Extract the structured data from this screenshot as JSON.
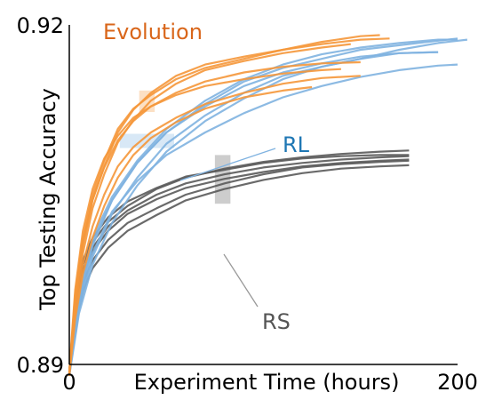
{
  "chart_data": {
    "type": "line",
    "title": "",
    "xlabel": "Experiment Time (hours)",
    "ylabel": "Top Testing Accuracy",
    "xlim": [
      0,
      200
    ],
    "ylim": [
      0.89,
      0.92
    ],
    "x_ticks": [
      "0",
      "200"
    ],
    "y_ticks": [
      "0.89",
      "0.92"
    ],
    "grid": false,
    "colors": {
      "Evolution": "#f5973a",
      "RL": "#7fb2e0",
      "RS": "#5a5a5a",
      "Evolution_label": "#d9661a",
      "RL_label": "#1f77b4",
      "RS_label": "#555555"
    },
    "annotations": [
      {
        "text": "Evolution",
        "group": "Evolution"
      },
      {
        "text": "RL",
        "group": "RL"
      },
      {
        "text": "RS",
        "group": "RS"
      }
    ],
    "highlight_bands": [
      {
        "group": "Evolution",
        "x": [
          36,
          44
        ],
        "y": [
          0.9123,
          0.9142
        ]
      },
      {
        "group": "RL",
        "x": [
          26,
          54
        ],
        "y": [
          0.9097,
          0.9098
        ]
      },
      {
        "group": "RS",
        "x": [
          75,
          83
        ],
        "y": [
          0.9042,
          0.9085
        ]
      }
    ],
    "series": [
      {
        "group": "Evolution",
        "values": [
          [
            0,
            0.889
          ],
          [
            3,
            0.8955
          ],
          [
            7,
            0.9005
          ],
          [
            12,
            0.9045
          ],
          [
            18,
            0.9075
          ],
          [
            25,
            0.9105
          ],
          [
            33,
            0.9125
          ],
          [
            42,
            0.914
          ],
          [
            55,
            0.9155
          ],
          [
            70,
            0.9165
          ],
          [
            90,
            0.9172
          ],
          [
            110,
            0.9178
          ],
          [
            130,
            0.9183
          ],
          [
            150,
            0.9187
          ],
          [
            165,
            0.9188
          ]
        ]
      },
      {
        "group": "Evolution",
        "values": [
          [
            0,
            0.8893
          ],
          [
            3,
            0.8962
          ],
          [
            7,
            0.9012
          ],
          [
            12,
            0.905
          ],
          [
            18,
            0.908
          ],
          [
            25,
            0.9108
          ],
          [
            33,
            0.9126
          ],
          [
            42,
            0.9138
          ],
          [
            55,
            0.9152
          ],
          [
            70,
            0.9162
          ],
          [
            90,
            0.917
          ],
          [
            110,
            0.9178
          ],
          [
            130,
            0.9185
          ],
          [
            150,
            0.919
          ],
          [
            160,
            0.9191
          ]
        ]
      },
      {
        "group": "Evolution",
        "values": [
          [
            0,
            0.889
          ],
          [
            3,
            0.895
          ],
          [
            7,
            0.8998
          ],
          [
            12,
            0.9038
          ],
          [
            18,
            0.9068
          ],
          [
            25,
            0.9096
          ],
          [
            33,
            0.9116
          ],
          [
            42,
            0.9133
          ],
          [
            55,
            0.9148
          ],
          [
            70,
            0.916
          ],
          [
            90,
            0.9168
          ],
          [
            110,
            0.9175
          ],
          [
            130,
            0.918
          ],
          [
            145,
            0.9183
          ]
        ]
      },
      {
        "group": "Evolution",
        "values": [
          [
            0,
            0.8892
          ],
          [
            3,
            0.8958
          ],
          [
            7,
            0.9008
          ],
          [
            12,
            0.9046
          ],
          [
            18,
            0.9074
          ],
          [
            25,
            0.9098
          ],
          [
            33,
            0.9115
          ],
          [
            42,
            0.9128
          ],
          [
            55,
            0.914
          ],
          [
            70,
            0.915
          ],
          [
            90,
            0.9158
          ],
          [
            110,
            0.9163
          ],
          [
            130,
            0.9166
          ],
          [
            150,
            0.9167
          ]
        ]
      },
      {
        "group": "Evolution",
        "values": [
          [
            0,
            0.8891
          ],
          [
            3,
            0.8945
          ],
          [
            7,
            0.8988
          ],
          [
            12,
            0.9022
          ],
          [
            18,
            0.905
          ],
          [
            25,
            0.9075
          ],
          [
            33,
            0.9092
          ],
          [
            42,
            0.9105
          ],
          [
            55,
            0.9118
          ],
          [
            70,
            0.913
          ],
          [
            90,
            0.914
          ],
          [
            110,
            0.9148
          ],
          [
            130,
            0.9153
          ],
          [
            150,
            0.9155
          ]
        ]
      },
      {
        "group": "Evolution",
        "values": [
          [
            0,
            0.8894
          ],
          [
            3,
            0.8966
          ],
          [
            7,
            0.9018
          ],
          [
            12,
            0.9055
          ],
          [
            18,
            0.9082
          ],
          [
            25,
            0.9102
          ],
          [
            33,
            0.9118
          ],
          [
            42,
            0.9128
          ],
          [
            55,
            0.9138
          ],
          [
            70,
            0.9146
          ],
          [
            90,
            0.9152
          ],
          [
            110,
            0.9157
          ],
          [
            130,
            0.916
          ],
          [
            140,
            0.9161
          ]
        ]
      },
      {
        "group": "Evolution",
        "values": [
          [
            0,
            0.889
          ],
          [
            3,
            0.894
          ],
          [
            7,
            0.898
          ],
          [
            12,
            0.9012
          ],
          [
            18,
            0.904
          ],
          [
            25,
            0.9065
          ],
          [
            33,
            0.9085
          ],
          [
            42,
            0.91
          ],
          [
            55,
            0.9114
          ],
          [
            70,
            0.9126
          ],
          [
            90,
            0.9136
          ],
          [
            110,
            0.9142
          ],
          [
            125,
            0.9145
          ]
        ]
      },
      {
        "group": "RL",
        "values": [
          [
            0,
            0.889
          ],
          [
            5,
            0.8955
          ],
          [
            12,
            0.9005
          ],
          [
            22,
            0.9045
          ],
          [
            35,
            0.9078
          ],
          [
            50,
            0.9105
          ],
          [
            70,
            0.913
          ],
          [
            90,
            0.915
          ],
          [
            110,
            0.9162
          ],
          [
            130,
            0.917
          ],
          [
            150,
            0.9178
          ],
          [
            170,
            0.9182
          ],
          [
            190,
            0.9186
          ],
          [
            200,
            0.9188
          ]
        ]
      },
      {
        "group": "RL",
        "values": [
          [
            0,
            0.8893
          ],
          [
            5,
            0.8962
          ],
          [
            12,
            0.9012
          ],
          [
            22,
            0.9048
          ],
          [
            35,
            0.908
          ],
          [
            50,
            0.9108
          ],
          [
            70,
            0.9133
          ],
          [
            90,
            0.9152
          ],
          [
            110,
            0.9165
          ],
          [
            130,
            0.9174
          ],
          [
            150,
            0.918
          ],
          [
            170,
            0.9184
          ],
          [
            190,
            0.9187
          ],
          [
            200,
            0.9187
          ]
        ]
      },
      {
        "group": "RL",
        "values": [
          [
            0,
            0.8891
          ],
          [
            5,
            0.8948
          ],
          [
            12,
            0.8995
          ],
          [
            22,
            0.9033
          ],
          [
            35,
            0.9065
          ],
          [
            50,
            0.9095
          ],
          [
            70,
            0.912
          ],
          [
            90,
            0.914
          ],
          [
            110,
            0.9155
          ],
          [
            130,
            0.9163
          ],
          [
            150,
            0.917
          ],
          [
            170,
            0.9178
          ],
          [
            190,
            0.9184
          ],
          [
            205,
            0.9187
          ]
        ]
      },
      {
        "group": "RL",
        "values": [
          [
            0,
            0.8892
          ],
          [
            5,
            0.8958
          ],
          [
            12,
            0.9008
          ],
          [
            22,
            0.9045
          ],
          [
            35,
            0.9078
          ],
          [
            50,
            0.9105
          ],
          [
            70,
            0.9128
          ],
          [
            90,
            0.9146
          ],
          [
            110,
            0.9158
          ],
          [
            130,
            0.9166
          ],
          [
            150,
            0.9172
          ],
          [
            170,
            0.9175
          ],
          [
            190,
            0.9176
          ]
        ]
      },
      {
        "group": "RL",
        "values": [
          [
            0,
            0.889
          ],
          [
            5,
            0.8945
          ],
          [
            12,
            0.8988
          ],
          [
            22,
            0.9025
          ],
          [
            35,
            0.9058
          ],
          [
            50,
            0.9088
          ],
          [
            70,
            0.9115
          ],
          [
            90,
            0.9135
          ],
          [
            110,
            0.9152
          ],
          [
            130,
            0.9163
          ],
          [
            150,
            0.917
          ],
          [
            170,
            0.9175
          ],
          [
            190,
            0.9176
          ]
        ]
      },
      {
        "group": "RL",
        "values": [
          [
            0,
            0.8894
          ],
          [
            5,
            0.8952
          ],
          [
            12,
            0.8998
          ],
          [
            22,
            0.9035
          ],
          [
            35,
            0.9062
          ],
          [
            50,
            0.9085
          ],
          [
            70,
            0.9105
          ],
          [
            90,
            0.9122
          ],
          [
            110,
            0.9136
          ],
          [
            130,
            0.9146
          ],
          [
            150,
            0.9154
          ],
          [
            170,
            0.916
          ],
          [
            190,
            0.9164
          ],
          [
            200,
            0.9165
          ]
        ]
      },
      {
        "group": "RS",
        "values": [
          [
            0,
            0.889
          ],
          [
            3,
            0.8955
          ],
          [
            7,
            0.8988
          ],
          [
            12,
            0.9008
          ],
          [
            20,
            0.9026
          ],
          [
            30,
            0.904
          ],
          [
            45,
            0.9055
          ],
          [
            60,
            0.9065
          ],
          [
            80,
            0.9073
          ],
          [
            100,
            0.9079
          ],
          [
            120,
            0.9083
          ],
          [
            140,
            0.9086
          ],
          [
            160,
            0.9088
          ],
          [
            175,
            0.9089
          ]
        ]
      },
      {
        "group": "RS",
        "values": [
          [
            0,
            0.8893
          ],
          [
            3,
            0.8958
          ],
          [
            7,
            0.8992
          ],
          [
            12,
            0.9012
          ],
          [
            20,
            0.903
          ],
          [
            30,
            0.9044
          ],
          [
            45,
            0.9056
          ],
          [
            60,
            0.9066
          ],
          [
            80,
            0.9072
          ],
          [
            100,
            0.9078
          ],
          [
            120,
            0.9082
          ],
          [
            140,
            0.9084
          ],
          [
            160,
            0.9085
          ],
          [
            175,
            0.9085
          ]
        ]
      },
      {
        "group": "RS",
        "values": [
          [
            0,
            0.8891
          ],
          [
            3,
            0.8948
          ],
          [
            7,
            0.898
          ],
          [
            12,
            0.9
          ],
          [
            20,
            0.9018
          ],
          [
            30,
            0.9033
          ],
          [
            45,
            0.9046
          ],
          [
            60,
            0.9056
          ],
          [
            80,
            0.9064
          ],
          [
            100,
            0.907
          ],
          [
            120,
            0.9075
          ],
          [
            140,
            0.9078
          ],
          [
            160,
            0.908
          ],
          [
            175,
            0.9081
          ]
        ]
      },
      {
        "group": "RS",
        "values": [
          [
            0,
            0.8892
          ],
          [
            3,
            0.8942
          ],
          [
            7,
            0.8972
          ],
          [
            12,
            0.8992
          ],
          [
            20,
            0.901
          ],
          [
            30,
            0.9025
          ],
          [
            45,
            0.9038
          ],
          [
            60,
            0.905
          ],
          [
            80,
            0.906
          ],
          [
            100,
            0.9068
          ],
          [
            120,
            0.9074
          ],
          [
            140,
            0.9077
          ],
          [
            160,
            0.9079
          ],
          [
            175,
            0.908
          ]
        ]
      },
      {
        "group": "RS",
        "values": [
          [
            0,
            0.889
          ],
          [
            3,
            0.8935
          ],
          [
            7,
            0.8965
          ],
          [
            12,
            0.8985
          ],
          [
            20,
            0.9003
          ],
          [
            30,
            0.9018
          ],
          [
            45,
            0.9032
          ],
          [
            60,
            0.9045
          ],
          [
            80,
            0.9055
          ],
          [
            100,
            0.9063
          ],
          [
            120,
            0.9069
          ],
          [
            140,
            0.9073
          ],
          [
            160,
            0.9075
          ],
          [
            175,
            0.9076
          ]
        ]
      },
      {
        "group": "RS",
        "values": [
          [
            0,
            0.8894
          ],
          [
            3,
            0.895
          ],
          [
            7,
            0.8983
          ],
          [
            12,
            0.9003
          ],
          [
            20,
            0.9022
          ],
          [
            30,
            0.9036
          ],
          [
            45,
            0.905
          ],
          [
            60,
            0.906
          ],
          [
            80,
            0.9068
          ],
          [
            100,
            0.9074
          ],
          [
            120,
            0.9078
          ],
          [
            140,
            0.9081
          ],
          [
            160,
            0.9083
          ],
          [
            175,
            0.9084
          ]
        ]
      }
    ]
  }
}
